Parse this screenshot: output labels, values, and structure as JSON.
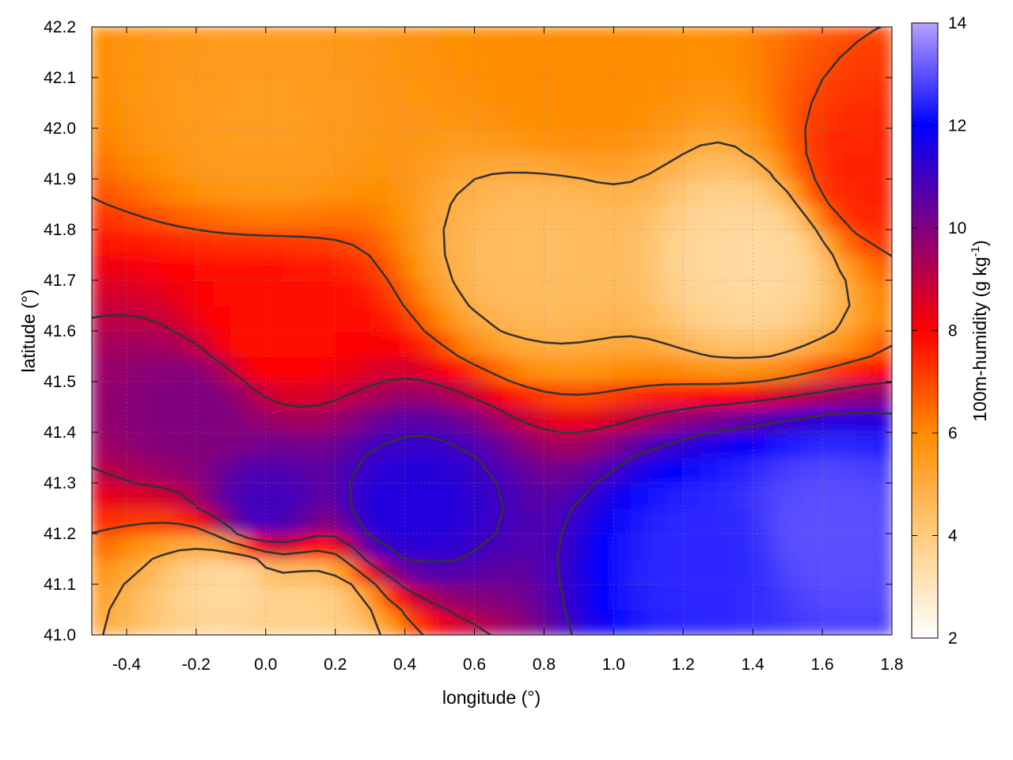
{
  "chart_data": {
    "type": "heatmap",
    "xlabel": "longitude (°)",
    "ylabel": "latitude (°)",
    "colorbar_label": "100m-humidity (g kg",
    "colorbar_label_sup": "-1",
    "colorbar_label_close": ")",
    "xlim": [
      -0.5,
      1.8
    ],
    "ylim": [
      41.0,
      42.2
    ],
    "zlim": [
      2,
      14
    ],
    "x_ticks": [
      -0.4,
      -0.2,
      0.0,
      0.2,
      0.4,
      0.6,
      0.8,
      1.0,
      1.2,
      1.4,
      1.6,
      1.8
    ],
    "x_tick_labels": [
      "-0.4",
      "-0.2",
      "0.0",
      "0.2",
      "0.4",
      "0.6",
      "0.8",
      "1.0",
      "1.2",
      "1.4",
      "1.6",
      "1.8"
    ],
    "y_ticks": [
      41.0,
      41.1,
      41.2,
      41.3,
      41.4,
      41.5,
      41.6,
      41.7,
      41.8,
      41.9,
      42.0,
      42.1,
      42.2
    ],
    "y_tick_labels": [
      "41.0",
      "41.1",
      "41.2",
      "41.3",
      "41.4",
      "41.5",
      "41.6",
      "41.7",
      "41.8",
      "41.9",
      "42.0",
      "42.1",
      "42.2"
    ],
    "z_ticks": [
      2,
      4,
      6,
      8,
      10,
      12,
      14
    ],
    "z_tick_labels": [
      "2",
      "4",
      "6",
      "8",
      "10",
      "12",
      "14"
    ],
    "colormap": [
      "#ffffff",
      "#ffcc80",
      "#ff8c00",
      "#ff0000",
      "#800080",
      "#0000ff",
      "#b8a0ff"
    ],
    "colormap_stops": [
      2,
      4,
      6,
      8,
      10,
      12,
      14
    ],
    "grid": true,
    "contour_color": "#333333",
    "field": {
      "description_points": [
        {
          "x": -0.2,
          "y": 41.45,
          "z": 10.0
        },
        {
          "x": 0.0,
          "y": 41.25,
          "z": 11.0
        },
        {
          "x": 0.4,
          "y": 41.25,
          "z": 11.5
        },
        {
          "x": 1.3,
          "y": 41.15,
          "z": 12.5
        },
        {
          "x": 1.6,
          "y": 41.2,
          "z": 13.0
        },
        {
          "x": -0.1,
          "y": 41.1,
          "z": 3.5
        },
        {
          "x": 0.1,
          "y": 41.05,
          "z": 3.8
        },
        {
          "x": 0.8,
          "y": 41.75,
          "z": 4.5
        },
        {
          "x": 1.4,
          "y": 41.75,
          "z": 3.5
        },
        {
          "x": 0.0,
          "y": 42.0,
          "z": 5.5
        },
        {
          "x": 0.9,
          "y": 42.1,
          "z": 6.0
        },
        {
          "x": 1.75,
          "y": 41.9,
          "z": 7.5
        },
        {
          "x": 0.0,
          "y": 41.6,
          "z": 7.8
        }
      ]
    }
  }
}
